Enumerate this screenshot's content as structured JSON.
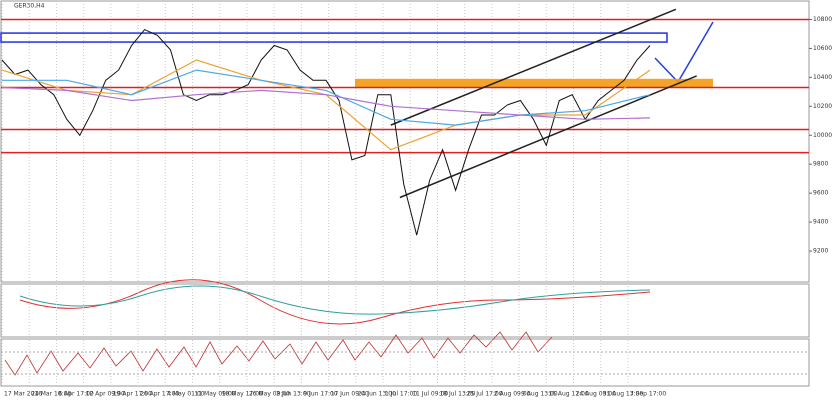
{
  "chart_data": {
    "type": "line",
    "title": "GER30,H4",
    "xlim": [
      0,
      50
    ],
    "ylim": [
      9000,
      10900
    ],
    "yticks": [
      9200,
      9400,
      9600,
      9800,
      10000,
      10200,
      10400,
      10600,
      10800
    ],
    "xticks": [
      {
        "value": 0,
        "label": "17 Mar 2016"
      },
      {
        "value": 2.1,
        "label": "24 Mar 10:00"
      },
      {
        "value": 4.2,
        "label": "6 Apr 17:00"
      },
      {
        "value": 6.3,
        "label": "12 Apr 09:00"
      },
      {
        "value": 8.4,
        "label": "19 Apr 17:00"
      },
      {
        "value": 10.5,
        "label": "26 Apr 17:00"
      },
      {
        "value": 12.6,
        "label": "4 May 01:00"
      },
      {
        "value": 14.7,
        "label": "11 May 09:00"
      },
      {
        "value": 16.8,
        "label": "18 May 17:00"
      },
      {
        "value": 18.9,
        "label": "26 May 09:00"
      },
      {
        "value": 21,
        "label": "2 Jun 13:00"
      },
      {
        "value": 23.1,
        "label": "9 Jun 17:00"
      },
      {
        "value": 25.2,
        "label": "17 Jun 09:00"
      },
      {
        "value": 27.3,
        "label": "24 Jun 13:00"
      },
      {
        "value": 29.4,
        "label": "1 Jul 17:00"
      },
      {
        "value": 31.5,
        "label": "11 Jul 09:00"
      },
      {
        "value": 33.6,
        "label": "18 Jul 13:00"
      },
      {
        "value": 35.7,
        "label": "25 Jul 17:00"
      },
      {
        "value": 37.8,
        "label": "2 Aug 09:00"
      },
      {
        "value": 39.9,
        "label": "9 Aug 13:00"
      },
      {
        "value": 42,
        "label": "16 Aug 17:00"
      },
      {
        "value": 44.1,
        "label": "24 Aug 09:00"
      },
      {
        "value": 46.2,
        "label": "31 Aug 13:00"
      },
      {
        "value": 48.3,
        "label": "7 Sep 17:00"
      }
    ],
    "grid": true,
    "series": [
      {
        "color": "#111111",
        "values": [
          10520,
          10420,
          10450,
          10350,
          10280,
          10110,
          10000,
          10170,
          10380,
          10450,
          10620,
          10730,
          10690,
          10590,
          10280,
          10240,
          10280,
          10280,
          10310,
          10350,
          10520,
          10620,
          10590,
          10450,
          10380,
          10380,
          10240,
          9830,
          9860,
          10280,
          10280,
          9660,
          9310,
          9690,
          9900,
          9620,
          9900,
          10140,
          10140,
          10210,
          10240,
          10110,
          9930,
          10240,
          10280,
          10110,
          10240,
          10310,
          10380,
          10520,
          10620
        ]
      },
      {
        "color": "#f0a030",
        "x": [
          0,
          5,
          10,
          15,
          20,
          25,
          30,
          35,
          40,
          45,
          50
        ],
        "values": [
          10450,
          10310,
          10280,
          10520,
          10380,
          10280,
          9900,
          10070,
          10140,
          10140,
          10450
        ]
      },
      {
        "color": "#4aa8e8",
        "x": [
          0,
          5,
          10,
          15,
          20,
          25,
          30,
          35,
          40,
          45,
          50
        ],
        "values": [
          10380,
          10380,
          10280,
          10450,
          10380,
          10310,
          10110,
          10070,
          10140,
          10170,
          10280
        ]
      },
      {
        "color": "#b070d0",
        "x": [
          0,
          5,
          10,
          15,
          20,
          25,
          30,
          35,
          40,
          45,
          50
        ],
        "values": [
          10330,
          10310,
          10240,
          10280,
          10310,
          10280,
          10200,
          10170,
          10140,
          10110,
          10120
        ]
      }
    ],
    "levels": [
      10800,
      10330,
      10040,
      9880
    ],
    "level_color": "#e02020",
    "zone": [
      10330,
      10390
    ],
    "zone_color": "#f59a10",
    "box": [
      10644,
      10706
    ],
    "box_color": "#2030e0",
    "channel": {
      "color": "#222222",
      "upper": [
        [
          30,
          10070
        ],
        [
          52,
          10870
        ]
      ],
      "lower": [
        [
          30.7,
          9570
        ],
        [
          53.6,
          10410
        ]
      ]
    }
  }
}
